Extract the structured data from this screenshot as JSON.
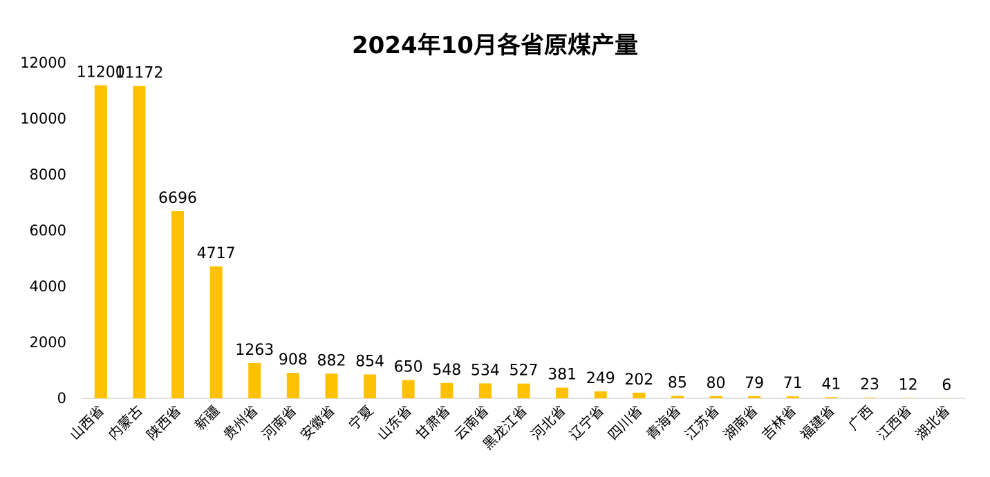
{
  "chart_data": {
    "type": "bar",
    "title": "2024年10月各省原煤产量",
    "xlabel": "",
    "ylabel": "",
    "categories": [
      "山西省",
      "内蒙古",
      "陕西省",
      "新疆",
      "贵州省",
      "河南省",
      "安徽省",
      "宁夏",
      "山东省",
      "甘肃省",
      "云南省",
      "黑龙江省",
      "河北省",
      "辽宁省",
      "四川省",
      "青海省",
      "江苏省",
      "湖南省",
      "吉林省",
      "福建省",
      "广西",
      "江西省",
      "湖北省"
    ],
    "values": [
      11200,
      11172,
      6696,
      4717,
      1263,
      908,
      882,
      854,
      650,
      548,
      534,
      527,
      381,
      249,
      202,
      85,
      80,
      79,
      71,
      41,
      23,
      12,
      6
    ],
    "ylim": [
      0,
      12000
    ],
    "yticks": [
      0,
      2000,
      4000,
      6000,
      8000,
      10000,
      12000
    ],
    "bar_color": "#FFC000",
    "grid": false,
    "legend": "none"
  }
}
